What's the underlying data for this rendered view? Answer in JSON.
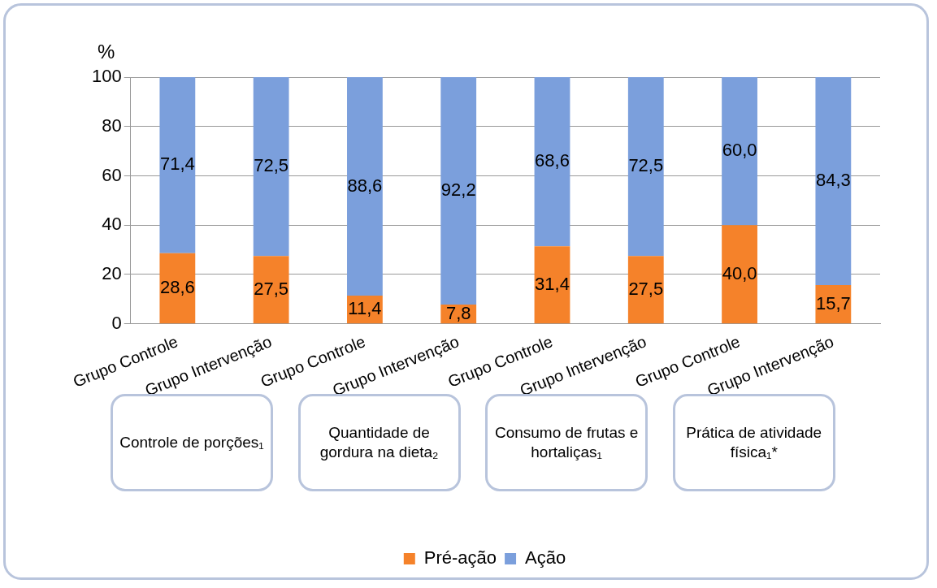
{
  "chart_data": {
    "type": "bar",
    "stacked": true,
    "ylabel": "%",
    "categories": [
      "Grupo Controle",
      "Grupo Intervenção",
      "Grupo Controle",
      "Grupo Intervenção",
      "Grupo Controle",
      "Grupo Intervenção",
      "Grupo Controle",
      "Grupo Intervenção"
    ],
    "series": [
      {
        "name": "Pré-ação",
        "color": "#f5822a",
        "values": [
          28.6,
          27.5,
          11.4,
          7.8,
          31.4,
          27.5,
          40.0,
          15.7
        ]
      },
      {
        "name": "Ação",
        "color": "#7b9fdc",
        "values": [
          71.4,
          72.5,
          88.6,
          92.2,
          68.6,
          72.5,
          60.0,
          84.3
        ]
      }
    ],
    "value_labels": [
      [
        "28,6",
        "27,5",
        "11,4",
        "7,8",
        "31,4",
        "27,5",
        "40,0",
        "15,7"
      ],
      [
        "71,4",
        "72,5",
        "88,6",
        "92,2",
        "68,6",
        "72,5",
        "60,0",
        "84,3"
      ]
    ],
    "annotations": [
      "Controle de porções₁",
      "Quantidade de gordura na dieta₂",
      "Consumo de frutas e hortaliças₁",
      "Prática de atividade física₁*"
    ],
    "ylim": [
      0,
      100
    ],
    "yticks": [
      0,
      20,
      40,
      60,
      80,
      100
    ],
    "grid": "y",
    "legend": "bottom"
  }
}
